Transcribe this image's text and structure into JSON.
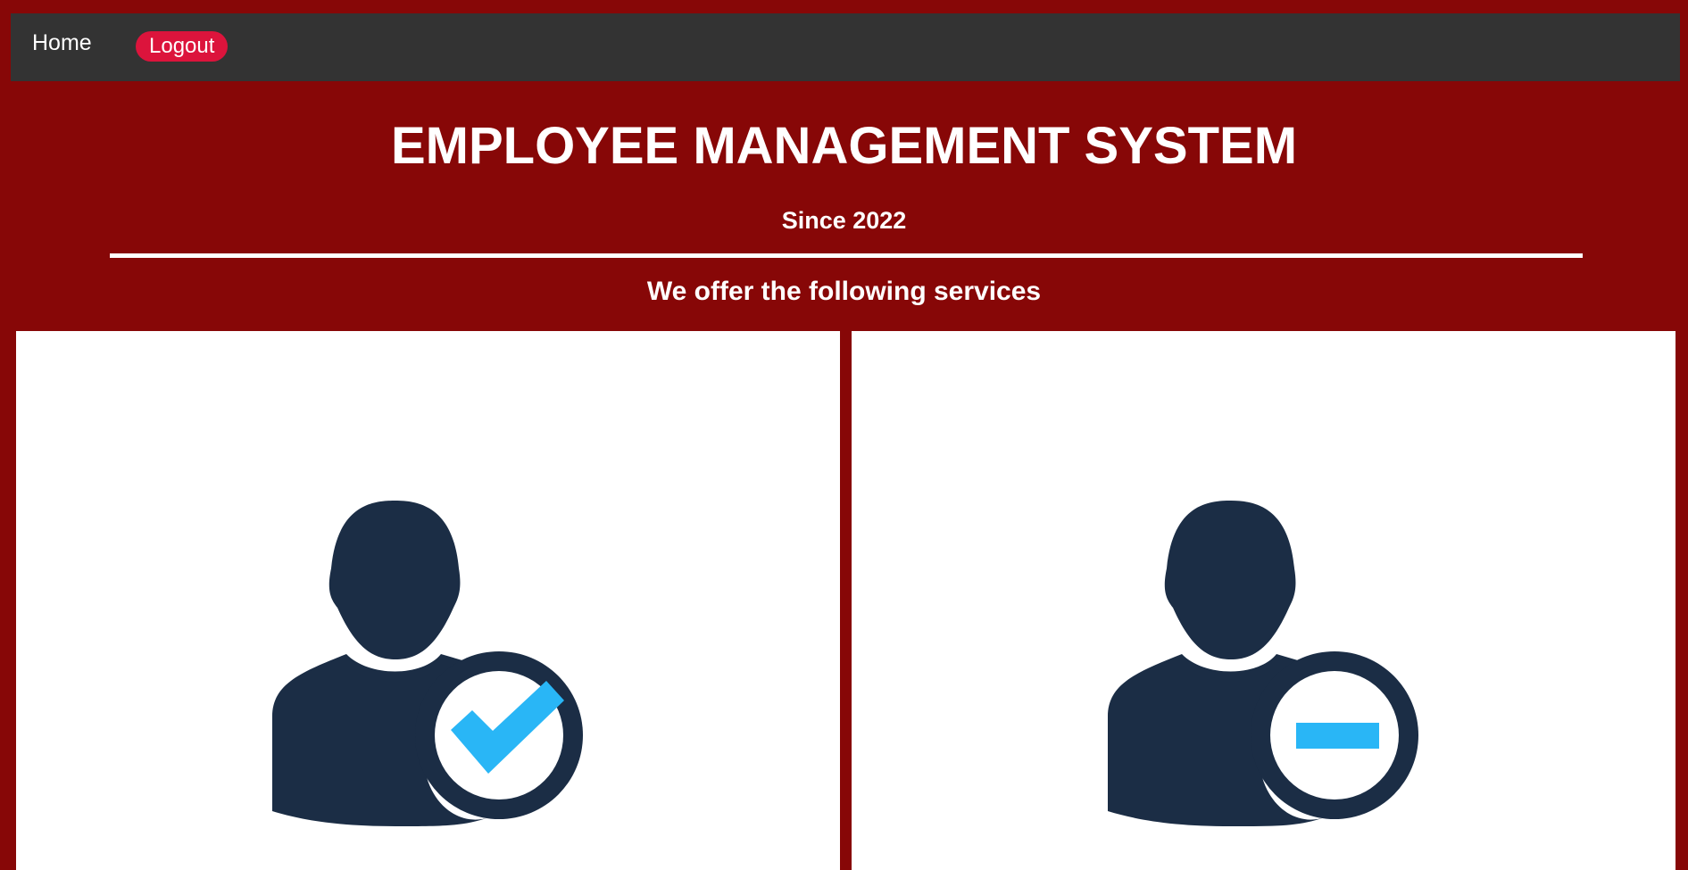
{
  "nav": {
    "home_label": "Home",
    "logout_label": "Logout"
  },
  "header": {
    "title": "EMPLOYEE MANAGEMENT SYSTEM",
    "subtitle": "Since 2022"
  },
  "services": {
    "heading": "We offer the following services",
    "cards": [
      {
        "icon": "user-check-icon"
      },
      {
        "icon": "user-remove-icon"
      }
    ]
  },
  "colors": {
    "background": "#870707",
    "navbar": "#333333",
    "logout": "#dc143c",
    "icon_dark": "#1b2d45",
    "icon_accent": "#29b6f6"
  }
}
